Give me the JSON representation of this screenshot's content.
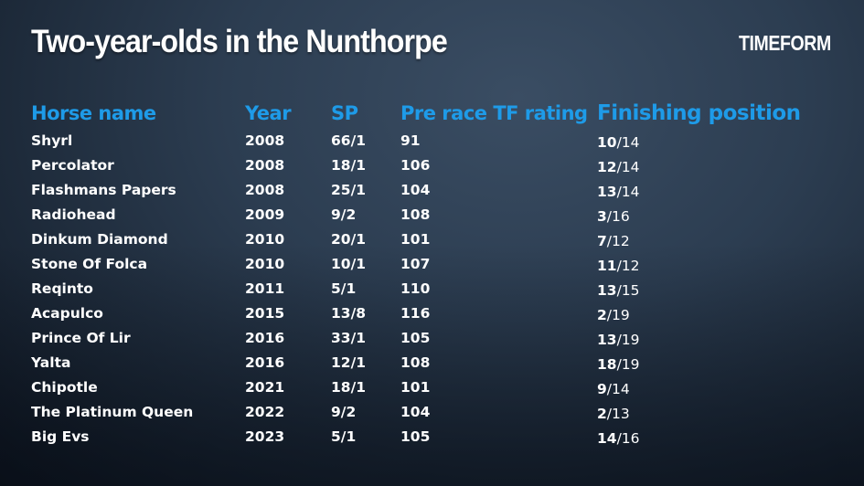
{
  "title": "Two-year-olds in the Nunthorpe",
  "logo": "TIMEFORM",
  "colors": {
    "header": "#1e9be8",
    "text": "#ffffff",
    "background": "#2c3d51"
  },
  "headers": [
    "Horse name",
    "Year",
    "SP",
    "Pre race TF rating",
    "Finishing position"
  ],
  "rows": [
    {
      "name": "Shyrl",
      "year": "2008",
      "sp": "66/1",
      "rating": "91",
      "pos": "10",
      "field": "/14"
    },
    {
      "name": "Percolator",
      "year": "2008",
      "sp": "18/1",
      "rating": "106",
      "pos": "12",
      "field": "/14"
    },
    {
      "name": "Flashmans Papers",
      "year": "2008",
      "sp": "25/1",
      "rating": "104",
      "pos": "13",
      "field": "/14"
    },
    {
      "name": "Radiohead",
      "year": "2009",
      "sp": "9/2",
      "rating": "108",
      "pos": "3",
      "field": "/16"
    },
    {
      "name": "Dinkum Diamond",
      "year": "2010",
      "sp": "20/1",
      "rating": "101",
      "pos": "7",
      "field": "/12"
    },
    {
      "name": "Stone Of Folca",
      "year": "2010",
      "sp": "10/1",
      "rating": "107",
      "pos": "11",
      "field": "/12"
    },
    {
      "name": "Reqinto",
      "year": "2011",
      "sp": "5/1",
      "rating": "110",
      "pos": "13",
      "field": "/15"
    },
    {
      "name": "Acapulco",
      "year": "2015",
      "sp": "13/8",
      "rating": "116",
      "pos": "2",
      "field": "/19"
    },
    {
      "name": "Prince Of Lir",
      "year": "2016",
      "sp": "33/1",
      "rating": "105",
      "pos": "13",
      "field": "/19"
    },
    {
      "name": "Yalta",
      "year": "2016",
      "sp": "12/1",
      "rating": "108",
      "pos": "18",
      "field": "/19"
    },
    {
      "name": "Chipotle",
      "year": "2021",
      "sp": "18/1",
      "rating": "101",
      "pos": "9",
      "field": "/14"
    },
    {
      "name": "The Platinum Queen",
      "year": "2022",
      "sp": "9/2",
      "rating": "104",
      "pos": "2",
      "field": "/13"
    },
    {
      "name": "Big Evs",
      "year": "2023",
      "sp": "5/1",
      "rating": "105",
      "pos": "14",
      "field": "/16"
    }
  ]
}
